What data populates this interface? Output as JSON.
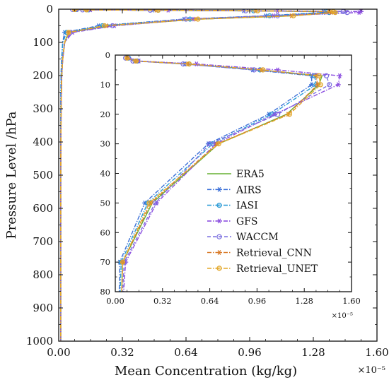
{
  "chart_data": [
    {
      "id": "main",
      "type": "line",
      "xlabel": "Mean Concentration (kg/kg)",
      "ylabel": "Pressure Level /hPa",
      "x_multiplier_label": "×10⁻⁵",
      "xlim": [
        0,
        1.6
      ],
      "ylim": [
        1000,
        0
      ],
      "x_ticks": [
        0,
        0.32,
        0.64,
        0.96,
        1.28,
        1.6
      ],
      "x_tick_labels": [
        "0.00",
        "0.32",
        "0.64",
        "0.96",
        "1.28",
        "1.60"
      ],
      "y_ticks": [
        0,
        100,
        200,
        300,
        400,
        500,
        600,
        700,
        800,
        900,
        1000
      ],
      "y_tick_labels": [
        "0",
        "100",
        "200",
        "300",
        "400",
        "500",
        "600",
        "700",
        "800",
        "900",
        "1000"
      ],
      "grid": false,
      "series": [
        {
          "name": "ERA5",
          "color": "#66b032",
          "dash": "solid",
          "marker": "none",
          "points": [
            [
              0.08,
              1
            ],
            [
              0.14,
              2
            ],
            [
              0.48,
              3
            ],
            [
              0.97,
              5
            ],
            [
              1.4,
              7
            ],
            [
              1.38,
              10
            ],
            [
              1.16,
              20
            ],
            [
              0.7,
              30
            ],
            [
              0.25,
              50
            ],
            [
              0.05,
              70
            ],
            [
              0.03,
              100
            ],
            [
              0.02,
              150
            ],
            [
              0.015,
              200
            ],
            [
              0.012,
              300
            ],
            [
              0.01,
              500
            ],
            [
              0.01,
              700
            ],
            [
              0.01,
              850
            ],
            [
              0.01,
              1000
            ]
          ]
        },
        {
          "name": "AIRS",
          "color": "#3a6fd8",
          "dash": "dashdot",
          "marker": "star",
          "points": [
            [
              0.08,
              1
            ],
            [
              0.13,
              2
            ],
            [
              0.47,
              3
            ],
            [
              0.93,
              5
            ],
            [
              1.33,
              7
            ],
            [
              1.33,
              10
            ],
            [
              1.04,
              20
            ],
            [
              0.63,
              30
            ],
            [
              0.2,
              50
            ],
            [
              0.03,
              70
            ],
            [
              0.02,
              100
            ],
            [
              0.015,
              150
            ],
            [
              0.012,
              200
            ],
            [
              0.01,
              300
            ],
            [
              0.01,
              500
            ],
            [
              0.01,
              700
            ],
            [
              0.01,
              850
            ],
            [
              0.01,
              1000
            ]
          ]
        },
        {
          "name": "IASI",
          "color": "#2b9bd6",
          "dash": "dashdot",
          "marker": "circle",
          "points": [
            [
              0.09,
              1
            ],
            [
              0.15,
              2
            ],
            [
              0.5,
              3
            ],
            [
              0.98,
              5
            ],
            [
              1.35,
              7
            ],
            [
              1.36,
              10
            ],
            [
              1.06,
              20
            ],
            [
              0.66,
              30
            ],
            [
              0.22,
              50
            ],
            [
              0.04,
              70
            ],
            [
              0.02,
              100
            ],
            [
              0.015,
              150
            ],
            [
              0.012,
              200
            ],
            [
              0.01,
              300
            ],
            [
              0.01,
              500
            ],
            [
              0.01,
              700
            ],
            [
              0.01,
              850
            ],
            [
              0.01,
              1000
            ]
          ]
        },
        {
          "name": "GFS",
          "color": "#8c4fe0",
          "dash": "dashdot",
          "marker": "star",
          "points": [
            [
              0.09,
              1
            ],
            [
              0.16,
              2
            ],
            [
              0.55,
              3
            ],
            [
              1.1,
              5
            ],
            [
              1.52,
              7
            ],
            [
              1.51,
              10
            ],
            [
              1.08,
              20
            ],
            [
              0.68,
              30
            ],
            [
              0.28,
              50
            ],
            [
              0.07,
              70
            ],
            [
              0.03,
              100
            ],
            [
              0.02,
              150
            ],
            [
              0.015,
              200
            ],
            [
              0.012,
              300
            ],
            [
              0.01,
              500
            ],
            [
              0.01,
              700
            ],
            [
              0.01,
              850
            ],
            [
              0.01,
              1000
            ]
          ]
        },
        {
          "name": "WACCM",
          "color": "#7b6fe0",
          "dash": "dashed",
          "marker": "circle-open",
          "points": [
            [
              0.07,
              1
            ],
            [
              0.12,
              2
            ],
            [
              0.46,
              3
            ],
            [
              0.94,
              5
            ],
            [
              1.43,
              7
            ],
            [
              1.45,
              10
            ],
            [
              1.1,
              20
            ],
            [
              0.64,
              30
            ],
            [
              0.27,
              50
            ],
            [
              0.06,
              70
            ],
            [
              0.03,
              100
            ],
            [
              0.02,
              150
            ],
            [
              0.015,
              200
            ],
            [
              0.012,
              300
            ],
            [
              0.01,
              500
            ],
            [
              0.01,
              700
            ],
            [
              0.01,
              850
            ],
            [
              0.01,
              1000
            ]
          ]
        },
        {
          "name": "Retrieval_CNN",
          "color": "#d97b2a",
          "dash": "dashdot",
          "marker": "star",
          "points": [
            [
              0.08,
              1
            ],
            [
              0.14,
              2
            ],
            [
              0.49,
              3
            ],
            [
              0.99,
              5
            ],
            [
              1.36,
              7
            ],
            [
              1.37,
              10
            ],
            [
              1.17,
              20
            ],
            [
              0.69,
              30
            ],
            [
              0.24,
              50
            ],
            [
              0.05,
              70
            ],
            [
              0.03,
              100
            ],
            [
              0.02,
              150
            ],
            [
              0.015,
              200
            ],
            [
              0.012,
              300
            ],
            [
              0.01,
              500
            ],
            [
              0.01,
              700
            ],
            [
              0.01,
              850
            ],
            [
              0.01,
              1000
            ]
          ]
        },
        {
          "name": "Retrieval_UNET",
          "color": "#e3a82b",
          "dash": "dashdot",
          "marker": "circle",
          "points": [
            [
              0.08,
              1
            ],
            [
              0.14,
              2
            ],
            [
              0.5,
              3
            ],
            [
              1.0,
              5
            ],
            [
              1.38,
              7
            ],
            [
              1.39,
              10
            ],
            [
              1.18,
              20
            ],
            [
              0.7,
              30
            ],
            [
              0.23,
              50
            ],
            [
              0.05,
              70
            ],
            [
              0.03,
              100
            ],
            [
              0.02,
              150
            ],
            [
              0.015,
              200
            ],
            [
              0.012,
              300
            ],
            [
              0.01,
              500
            ],
            [
              0.01,
              700
            ],
            [
              0.01,
              850
            ],
            [
              0.01,
              1000
            ]
          ]
        }
      ]
    },
    {
      "id": "inset",
      "type": "line",
      "xlabel": "",
      "ylabel": "",
      "x_multiplier_label": "×10⁻⁵",
      "xlim": [
        0,
        1.6
      ],
      "ylim": [
        80,
        0
      ],
      "x_ticks": [
        0,
        0.32,
        0.64,
        0.96,
        1.28,
        1.6
      ],
      "x_tick_labels": [
        "0.00",
        "0.32",
        "0.64",
        "0.96",
        "1.28",
        "1.60"
      ],
      "y_ticks": [
        0,
        10,
        20,
        30,
        40,
        50,
        60,
        70,
        80
      ],
      "y_tick_labels": [
        "0",
        "10",
        "20",
        "30",
        "40",
        "50",
        "60",
        "70",
        "80"
      ],
      "legend_position": "lower-right",
      "legend_labels": [
        "ERA5",
        "AIRS",
        "IASI",
        "GFS",
        "WACCM",
        "Retrieval_CNN",
        "Retrieval_UNET"
      ],
      "grid": false,
      "note": "same series as main plot, zoomed to 0–80 hPa"
    }
  ]
}
